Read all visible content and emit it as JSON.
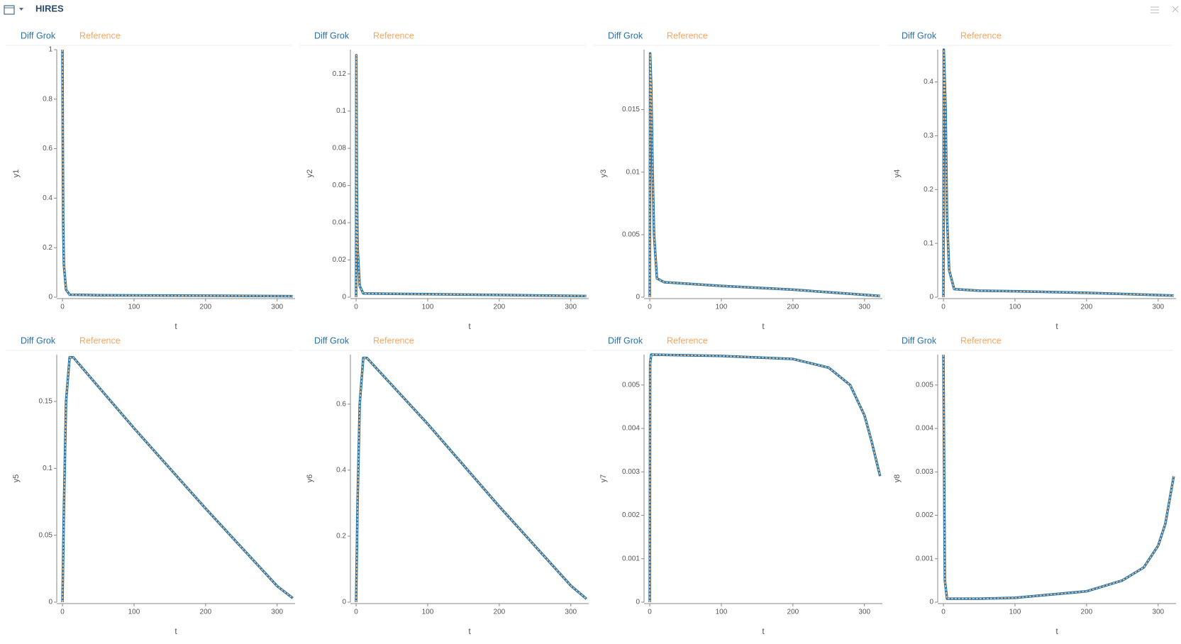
{
  "header": {
    "title": "HIRES"
  },
  "chart_data": [
    {
      "type": "line",
      "y_label": "y1",
      "x_label": "t",
      "x": [
        0,
        0.5,
        1,
        2,
        5,
        10,
        50,
        100,
        200,
        321.8
      ],
      "series": [
        {
          "name": "Diff Grok",
          "color": "#1f77b4",
          "values": [
            1,
            0.6,
            0.3,
            0.13,
            0.03,
            0.01,
            0.008,
            0.007,
            0.006,
            0.004
          ]
        },
        {
          "name": "Reference",
          "color": "#ffbb78",
          "values": [
            1,
            0.6,
            0.3,
            0.13,
            0.03,
            0.01,
            0.008,
            0.007,
            0.006,
            0.004
          ]
        }
      ],
      "xlim": [
        -8,
        325
      ],
      "xticks": [
        0,
        100,
        200,
        300
      ],
      "ylim": [
        0,
        1
      ],
      "yticks": [
        0,
        0.2,
        0.4,
        0.6,
        0.8,
        1
      ]
    },
    {
      "type": "line",
      "y_label": "y2",
      "x_label": "t",
      "x": [
        0,
        0.3,
        1,
        2,
        5,
        10,
        50,
        100,
        200,
        321.8
      ],
      "series": [
        {
          "name": "Diff Grok",
          "color": "#1f77b4",
          "values": [
            0,
            0.13,
            0.06,
            0.027,
            0.006,
            0.002,
            0.0018,
            0.0016,
            0.0012,
            0.0006
          ]
        },
        {
          "name": "Reference",
          "color": "#ffbb78",
          "values": [
            0,
            0.13,
            0.06,
            0.027,
            0.006,
            0.002,
            0.0018,
            0.0016,
            0.0012,
            0.0006
          ]
        }
      ],
      "xlim": [
        -8,
        325
      ],
      "xticks": [
        0,
        100,
        200,
        300
      ],
      "ylim": [
        0,
        0.133
      ],
      "yticks": [
        0,
        0.02,
        0.04,
        0.06,
        0.08,
        0.1,
        0.12
      ]
    },
    {
      "type": "line",
      "y_label": "y3",
      "x_label": "t",
      "x": [
        0,
        0.5,
        2,
        4,
        6,
        10,
        20,
        100,
        200,
        321.8
      ],
      "series": [
        {
          "name": "Diff Grok",
          "color": "#1f77b4",
          "values": [
            0,
            0.0195,
            0.017,
            0.01,
            0.005,
            0.0015,
            0.0012,
            0.0009,
            0.0006,
            0.0001
          ]
        },
        {
          "name": "Reference",
          "color": "#ffbb78",
          "values": [
            0,
            0.0195,
            0.017,
            0.01,
            0.005,
            0.0015,
            0.0012,
            0.0009,
            0.0006,
            0.0001
          ]
        }
      ],
      "xlim": [
        -8,
        325
      ],
      "xticks": [
        0,
        100,
        200,
        300
      ],
      "ylim": [
        0,
        0.0198
      ],
      "yticks": [
        0,
        0.005,
        0.01,
        0.015
      ]
    },
    {
      "type": "line",
      "y_label": "y4",
      "x_label": "t",
      "x": [
        0,
        0.5,
        3,
        5,
        8,
        15,
        50,
        100,
        200,
        321.8
      ],
      "series": [
        {
          "name": "Diff Grok",
          "color": "#1f77b4",
          "values": [
            0,
            0.46,
            0.35,
            0.15,
            0.05,
            0.015,
            0.012,
            0.011,
            0.008,
            0.003
          ]
        },
        {
          "name": "Reference",
          "color": "#ffbb78",
          "values": [
            0,
            0.46,
            0.35,
            0.15,
            0.05,
            0.015,
            0.012,
            0.011,
            0.008,
            0.003
          ]
        }
      ],
      "xlim": [
        -8,
        325
      ],
      "xticks": [
        0,
        100,
        200,
        300
      ],
      "ylim": [
        0,
        0.46
      ],
      "yticks": [
        0,
        0.1,
        0.2,
        0.3,
        0.4
      ]
    },
    {
      "type": "line",
      "y_label": "y5",
      "x_label": "t",
      "x": [
        0,
        2,
        5,
        10,
        15,
        100,
        200,
        300,
        321.8
      ],
      "series": [
        {
          "name": "Diff Grok",
          "color": "#1f77b4",
          "values": [
            0,
            0.07,
            0.15,
            0.183,
            0.183,
            0.13,
            0.07,
            0.012,
            0.003
          ]
        },
        {
          "name": "Reference",
          "color": "#ffbb78",
          "values": [
            0,
            0.07,
            0.15,
            0.183,
            0.183,
            0.13,
            0.07,
            0.012,
            0.003
          ]
        }
      ],
      "xlim": [
        -8,
        325
      ],
      "xticks": [
        0,
        100,
        200,
        300
      ],
      "ylim": [
        0,
        0.185
      ],
      "yticks": [
        0,
        0.05,
        0.1,
        0.15
      ]
    },
    {
      "type": "line",
      "y_label": "y6",
      "x_label": "t",
      "x": [
        0,
        2,
        5,
        10,
        15,
        100,
        200,
        300,
        321.8
      ],
      "series": [
        {
          "name": "Diff Grok",
          "color": "#1f77b4",
          "values": [
            0,
            0.3,
            0.6,
            0.74,
            0.74,
            0.54,
            0.29,
            0.05,
            0.01
          ]
        },
        {
          "name": "Reference",
          "color": "#ffbb78",
          "values": [
            0,
            0.3,
            0.6,
            0.74,
            0.74,
            0.54,
            0.29,
            0.05,
            0.01
          ]
        }
      ],
      "xlim": [
        -8,
        325
      ],
      "xticks": [
        0,
        100,
        200,
        300
      ],
      "ylim": [
        0,
        0.75
      ],
      "yticks": [
        0,
        0.2,
        0.4,
        0.6
      ]
    },
    {
      "type": "line",
      "y_label": "y7",
      "x_label": "t",
      "x": [
        0,
        0.5,
        2,
        100,
        200,
        250,
        280,
        300,
        310,
        321.8
      ],
      "series": [
        {
          "name": "Diff Grok",
          "color": "#1f77b4",
          "values": [
            0,
            0.0055,
            0.0057,
            0.00567,
            0.0056,
            0.0054,
            0.005,
            0.0043,
            0.0037,
            0.0029
          ]
        },
        {
          "name": "Reference",
          "color": "#ffbb78",
          "values": [
            0,
            0.0055,
            0.0057,
            0.00567,
            0.0056,
            0.0054,
            0.005,
            0.0043,
            0.0037,
            0.0029
          ]
        }
      ],
      "xlim": [
        -8,
        325
      ],
      "xticks": [
        0,
        100,
        200,
        300
      ],
      "ylim": [
        0,
        0.0057
      ],
      "yticks": [
        0,
        0.001,
        0.002,
        0.003,
        0.004,
        0.005
      ]
    },
    {
      "type": "line",
      "y_label": "y8",
      "x_label": "t",
      "x": [
        0,
        1,
        2,
        5,
        50,
        100,
        200,
        250,
        280,
        300,
        310,
        321.8
      ],
      "series": [
        {
          "name": "Diff Grok",
          "color": "#1f77b4",
          "values": [
            0.0057,
            0.003,
            0.0005,
            8e-05,
            8e-05,
            0.0001,
            0.00025,
            0.0005,
            0.0008,
            0.0013,
            0.0018,
            0.0029
          ]
        },
        {
          "name": "Reference",
          "color": "#ffbb78",
          "values": [
            0.0057,
            0.003,
            0.0005,
            8e-05,
            8e-05,
            0.0001,
            0.00025,
            0.0005,
            0.0008,
            0.0013,
            0.0018,
            0.0029
          ]
        }
      ],
      "xlim": [
        -8,
        325
      ],
      "xticks": [
        0,
        100,
        200,
        300
      ],
      "ylim": [
        0,
        0.0057
      ],
      "yticks": [
        0,
        0.001,
        0.002,
        0.003,
        0.004,
        0.005
      ]
    }
  ]
}
